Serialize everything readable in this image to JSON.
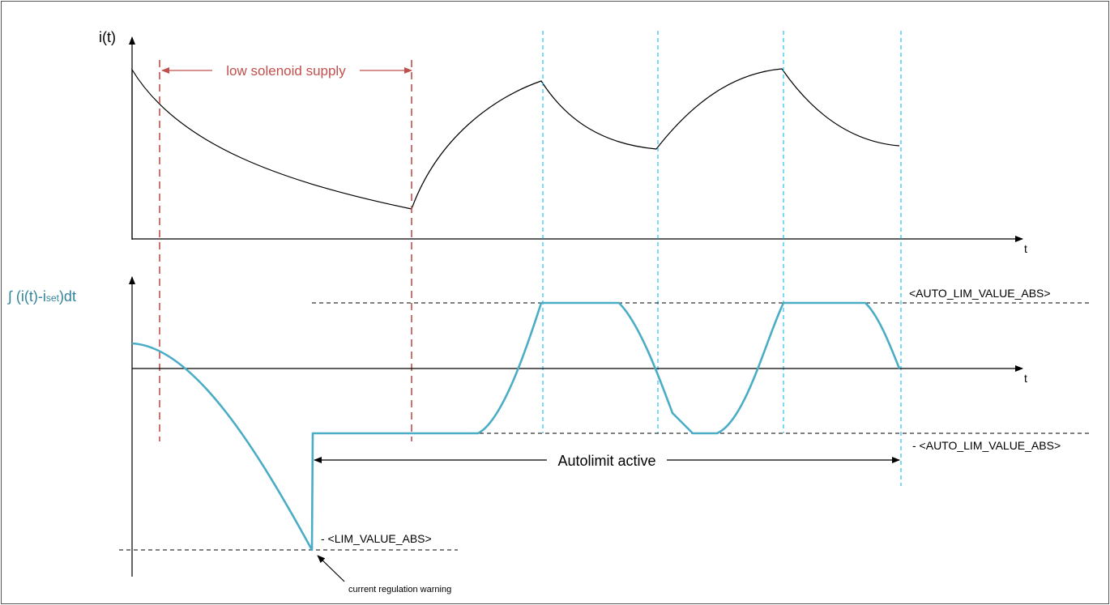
{
  "labels": {
    "y_axis_top": "i(t)",
    "x_axis_top": "t",
    "y_axis_bottom_prefix": "∫ (i(t)-i",
    "y_axis_bottom_sub": "set",
    "y_axis_bottom_suffix": ")dt",
    "x_axis_bottom": "t",
    "low_supply": "low solenoid supply",
    "auto_lim_pos": "<AUTO_LIM_VALUE_ABS>",
    "auto_lim_neg": "- <AUTO_LIM_VALUE_ABS>",
    "autolimit_active": "Autolimit active",
    "lim_value": "- <LIM_VALUE_ABS>",
    "warning": "current regulation warning"
  },
  "colors": {
    "axis": "#000000",
    "current_curve": "#000000",
    "integral_curve": "#4bacc6",
    "integral_label": "#31849b",
    "low_supply_marker": "#c0504d",
    "cyan_marker": "#00b0f0",
    "threshold_line": "#000000"
  }
}
